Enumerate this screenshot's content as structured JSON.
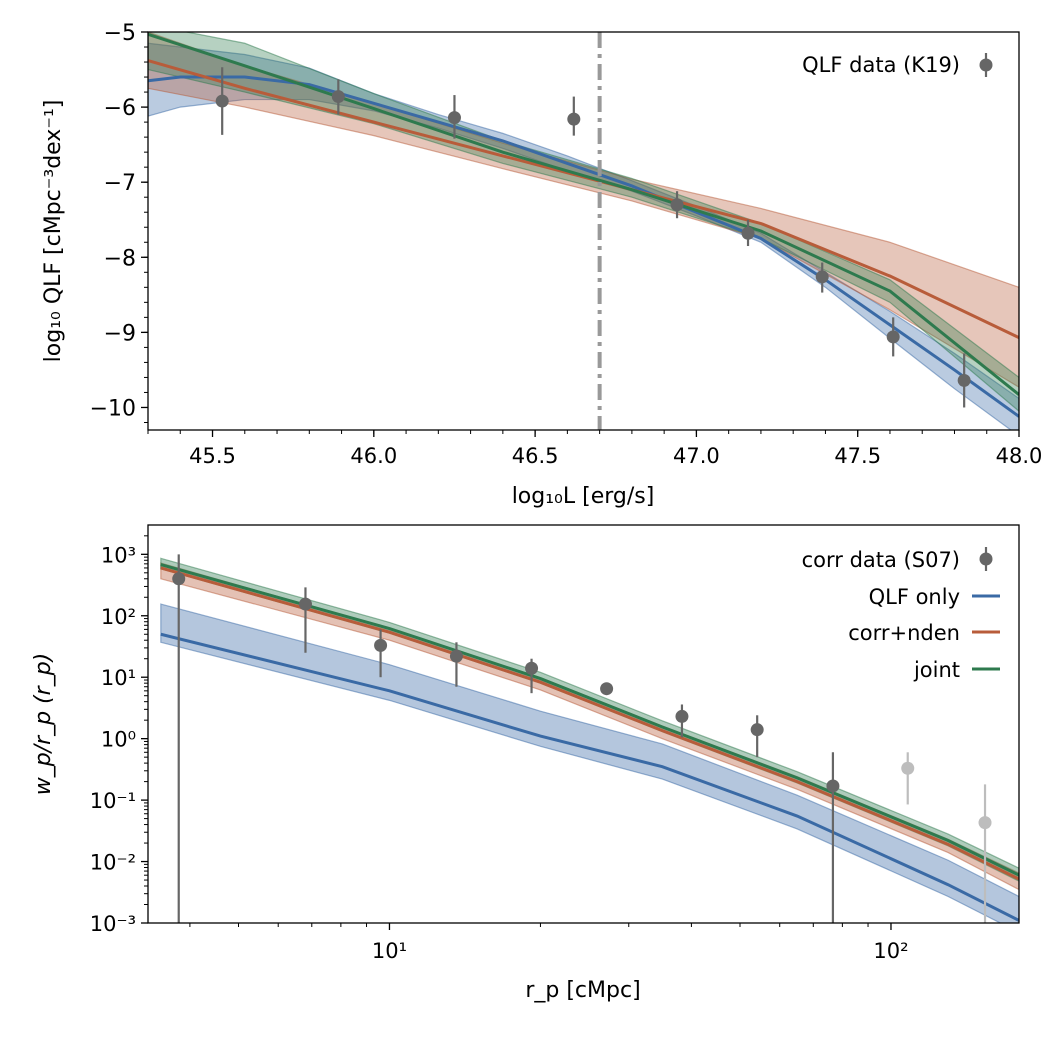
{
  "colors": {
    "qlf_only": "#3a6aa5",
    "corr_nden": "#b85c3a",
    "joint": "#2e7a4e",
    "data": "#666666",
    "data_faint": "#bdbdbd",
    "vline": "#999999"
  },
  "chart_data": [
    {
      "type": "line",
      "panel": "top",
      "xlabel": "log₁₀L [erg/s]",
      "ylabel": "log₁₀ QLF [cMpc⁻³dex⁻¹]",
      "xlim": [
        45.3,
        48.0
      ],
      "ylim": [
        -10.3,
        -5.0
      ],
      "xticks": [
        45.5,
        46.0,
        46.5,
        47.0,
        47.5,
        48.0
      ],
      "xtick_labels": [
        "45.5",
        "46.0",
        "46.5",
        "47.0",
        "47.5",
        "48.0"
      ],
      "yticks": [
        -5,
        -6,
        -7,
        -8,
        -9,
        -10
      ],
      "ytick_labels": [
        "−5",
        "−6",
        "−7",
        "−8",
        "−9",
        "−10"
      ],
      "vline_x": 46.7,
      "legend": [
        "QLF data (K19)"
      ],
      "legend_position": "top-right",
      "data_points": {
        "name": "QLF data (K19)",
        "x": [
          45.53,
          45.89,
          46.25,
          46.62,
          46.94,
          47.16,
          47.39,
          47.61,
          47.83
        ],
        "y": [
          -5.92,
          -5.86,
          -6.14,
          -6.16,
          -7.3,
          -7.68,
          -8.26,
          -9.06,
          -9.64
        ],
        "y_low": [
          -6.37,
          -6.1,
          -6.42,
          -6.38,
          -7.48,
          -7.85,
          -8.47,
          -9.32,
          -10.0
        ],
        "y_high": [
          -5.47,
          -5.63,
          -5.84,
          -5.86,
          -7.12,
          -7.5,
          -8.07,
          -8.8,
          -9.28
        ]
      },
      "series": [
        {
          "name": "QLF only",
          "x": [
            45.3,
            45.4,
            45.6,
            45.8,
            46.0,
            46.2,
            46.4,
            46.6,
            46.8,
            47.0,
            47.2,
            47.4,
            47.6,
            47.8,
            48.0
          ],
          "y": [
            -5.65,
            -5.6,
            -5.6,
            -5.7,
            -5.95,
            -6.2,
            -6.45,
            -6.75,
            -7.05,
            -7.4,
            -7.75,
            -8.3,
            -8.9,
            -9.5,
            -10.12
          ],
          "lower": [
            -6.12,
            -6.0,
            -5.9,
            -5.9,
            -6.05,
            -6.28,
            -6.55,
            -6.85,
            -7.12,
            -7.45,
            -7.8,
            -8.4,
            -9.08,
            -9.75,
            -10.38
          ],
          "upper": [
            -5.15,
            -5.2,
            -5.3,
            -5.48,
            -5.82,
            -6.1,
            -6.35,
            -6.65,
            -6.98,
            -7.32,
            -7.68,
            -8.2,
            -8.72,
            -9.28,
            -9.88
          ]
        },
        {
          "name": "corr+nden",
          "x": [
            45.3,
            45.6,
            46.0,
            46.4,
            46.8,
            47.2,
            47.6,
            48.0
          ],
          "y": [
            -5.38,
            -5.75,
            -6.2,
            -6.65,
            -7.1,
            -7.55,
            -8.25,
            -9.07
          ],
          "lower": [
            -5.75,
            -6.0,
            -6.38,
            -6.82,
            -7.25,
            -7.75,
            -8.7,
            -9.73
          ],
          "upper": [
            -5.0,
            -5.45,
            -5.95,
            -6.48,
            -6.96,
            -7.35,
            -7.8,
            -8.4
          ]
        },
        {
          "name": "joint",
          "x": [
            45.3,
            45.6,
            46.0,
            46.4,
            46.8,
            47.2,
            47.6,
            48.0
          ],
          "y": [
            -5.03,
            -5.45,
            -6.02,
            -6.6,
            -7.1,
            -7.65,
            -8.45,
            -9.83
          ],
          "lower": [
            -5.5,
            -5.8,
            -6.22,
            -6.75,
            -7.2,
            -7.75,
            -8.6,
            -10.05
          ],
          "upper": [
            -4.9,
            -5.15,
            -5.82,
            -6.45,
            -6.95,
            -7.55,
            -8.3,
            -9.6
          ]
        }
      ]
    },
    {
      "type": "line",
      "panel": "bottom",
      "xscale": "log",
      "yscale": "log",
      "xlabel": "r_p [cMpc]",
      "ylabel": "w_p/r_p (r_p)",
      "xlim": [
        3.3,
        180
      ],
      "ylim": [
        0.001,
        3000
      ],
      "xtick_labels": [
        "10¹",
        "10²"
      ],
      "ytick_labels": [
        "10³",
        "10²",
        "10¹",
        "10⁰",
        "10⁻¹",
        "10⁻²",
        "10⁻³"
      ],
      "legend": [
        "corr data (S07)",
        "QLF only",
        "corr+nden",
        "joint"
      ],
      "legend_position": "top-right",
      "data_points": {
        "name": "corr data (S07)",
        "x": [
          3.8,
          6.8,
          9.6,
          13.6,
          19.2,
          27.1,
          38.3,
          54.1,
          76.6
        ],
        "y": [
          400,
          155,
          33,
          22,
          14,
          6.5,
          2.3,
          1.4,
          0.17
        ],
        "y_low": [
          0.001,
          25,
          10,
          7,
          5.5,
          5.2,
          1.05,
          0.5,
          0.001
        ],
        "y_high": [
          1000,
          290,
          60,
          37,
          20,
          7.8,
          3.6,
          2.4,
          0.6
        ]
      },
      "faint_points": {
        "x": [
          108,
          154
        ],
        "y": [
          0.33,
          0.043
        ],
        "y_low": [
          0.085,
          0.001
        ],
        "y_high": [
          0.6,
          0.18
        ]
      },
      "series": [
        {
          "name": "QLF only",
          "x": [
            3.5,
            10,
            20,
            35,
            65,
            130,
            180
          ],
          "y": [
            50,
            6,
            1.1,
            0.35,
            0.055,
            0.0042,
            0.0011
          ],
          "lower": [
            37,
            4.2,
            0.75,
            0.22,
            0.034,
            0.0027,
            0.0007
          ],
          "upper": [
            155,
            16,
            2.8,
            0.82,
            0.12,
            0.0105,
            0.0027
          ]
        },
        {
          "name": "corr+nden",
          "x": [
            3.5,
            10,
            20,
            35,
            65,
            130,
            180
          ],
          "y": [
            600,
            54,
            8.3,
            1.35,
            0.2,
            0.019,
            0.0052
          ],
          "lower": [
            400,
            40,
            6.2,
            1.0,
            0.15,
            0.014,
            0.0035
          ],
          "upper": [
            720,
            62,
            9.8,
            1.6,
            0.24,
            0.023,
            0.0065
          ]
        },
        {
          "name": "joint",
          "x": [
            3.5,
            10,
            20,
            35,
            65,
            130,
            180
          ],
          "y": [
            680,
            62,
            9.5,
            1.55,
            0.23,
            0.022,
            0.006
          ],
          "lower": [
            580,
            52,
            8.0,
            1.3,
            0.19,
            0.018,
            0.0048
          ],
          "upper": [
            860,
            78,
            12,
            1.95,
            0.29,
            0.028,
            0.0078
          ]
        }
      ]
    }
  ]
}
